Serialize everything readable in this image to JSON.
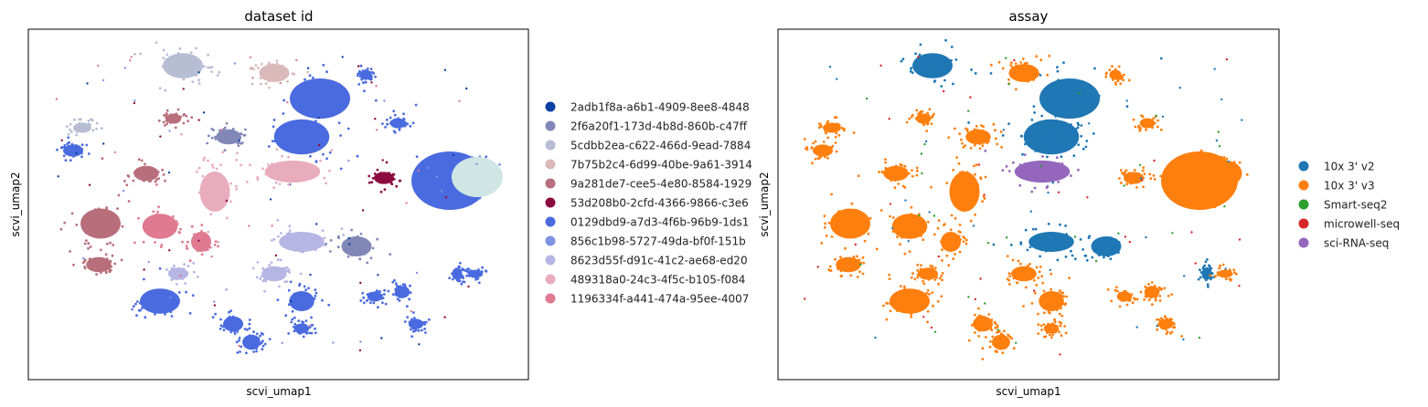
{
  "chart_data": [
    {
      "type": "scatter",
      "title": "dataset id",
      "xlabel": "scvi_umap1",
      "ylabel": "scvi_umap2",
      "grid": false,
      "legend": "right",
      "legend_entries": [
        {
          "label": "2adb1f8a-a6b1-4909-8ee8-4848",
          "color": "#0b3fa3"
        },
        {
          "label": "2f6a20f1-173d-4b8d-860b-c47ff",
          "color": "#8187b7"
        },
        {
          "label": "5cdbb2ea-c622-466d-9ead-7884",
          "color": "#b7bdd3"
        },
        {
          "label": "7b75b2c4-6d99-40be-9a61-3914",
          "color": "#d9b9b9"
        },
        {
          "label": "9a281de7-cee5-4e80-8584-1929",
          "color": "#b86e7b"
        },
        {
          "label": "53d208b0-2cfd-4366-9866-c3e6",
          "color": "#8c0b3f"
        },
        {
          "label": "0129dbd9-a7d3-4f6b-96b9-1ds1",
          "color": "#4a6bdf"
        },
        {
          "label": "856c1b98-5727-49da-bf0f-151b",
          "color": "#7f93e0"
        },
        {
          "label": "8623d55f-d91c-41c2-ae68-ed20",
          "color": "#b5b6e3"
        },
        {
          "label": "489318a0-24c3-4f5c-b105-f084",
          "color": "#e8acbd"
        },
        {
          "label": "1196334f-a441-474a-95ee-4007",
          "color": "#df7a91"
        }
      ]
    },
    {
      "type": "scatter",
      "title": "assay",
      "xlabel": "scvi_umap1",
      "ylabel": "scvi_umap2",
      "grid": false,
      "legend": "right",
      "legend_entries": [
        {
          "label": "10x 3' v2",
          "color": "#1f77b4"
        },
        {
          "label": "10x 3' v3",
          "color": "#ff7f0e"
        },
        {
          "label": "Smart-seq2",
          "color": "#2ca02c"
        },
        {
          "label": "microwell-seq",
          "color": "#d62728"
        },
        {
          "label": "sci-RNA-seq",
          "color": "#9467bd"
        }
      ]
    }
  ]
}
